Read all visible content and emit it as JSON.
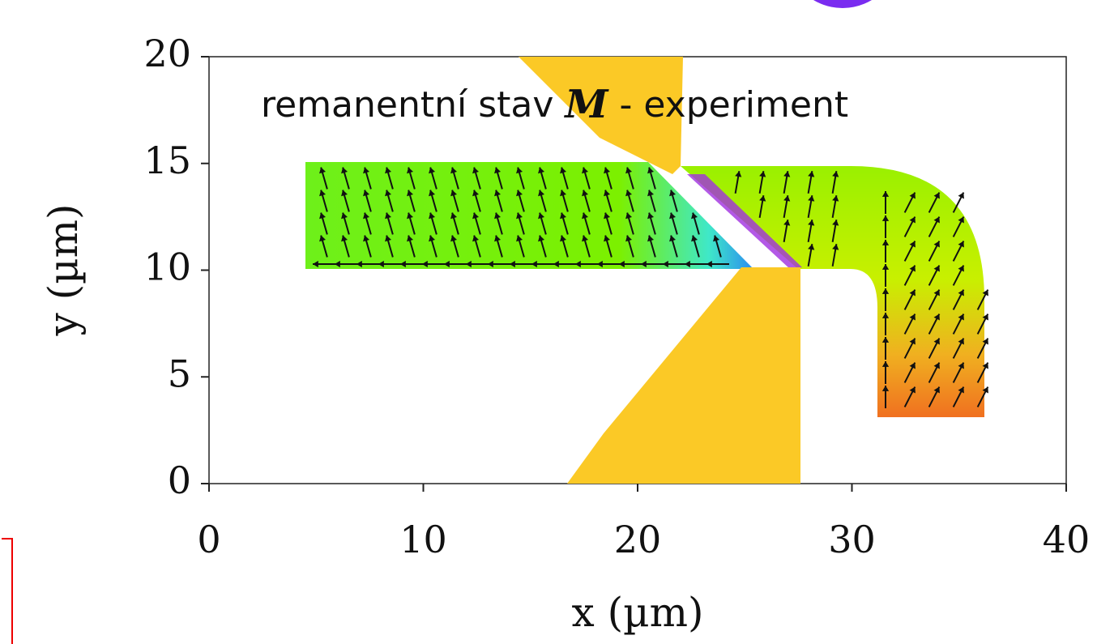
{
  "chart_data": {
    "type": "map",
    "annotation": {
      "text": "remanentní stav ",
      "symbol": "M",
      "suffix": " - experiment"
    },
    "xlabel": "x (µm)",
    "ylabel": "y (µm)",
    "xlim": [
      0,
      40
    ],
    "ylim": [
      0,
      20
    ],
    "xticks": [
      0,
      10,
      20,
      30,
      40
    ],
    "yticks": [
      0,
      5,
      10,
      15,
      20
    ]
  }
}
